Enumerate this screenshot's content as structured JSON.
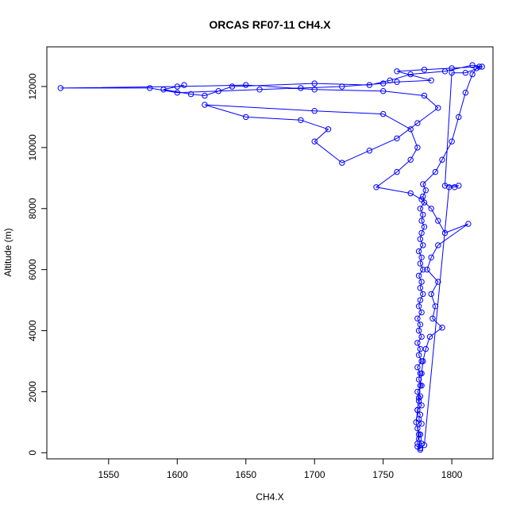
{
  "chart_data": {
    "type": "scatter",
    "title": "ORCAS RF07-11 CH4.X",
    "xlabel": "CH4.X",
    "ylabel": "Altitude (m)",
    "xlim": [
      1505,
      1830
    ],
    "ylim": [
      -200,
      13300
    ],
    "xticks": [
      1550,
      1600,
      1650,
      1700,
      1750,
      1800
    ],
    "yticks": [
      0,
      2000,
      4000,
      6000,
      8000,
      10000,
      12000
    ],
    "series_color": "#0000ff",
    "series": [
      {
        "points": [
          [
            1777,
            100
          ],
          [
            1775,
            200
          ],
          [
            1778,
            300
          ],
          [
            1776,
            450
          ],
          [
            1777,
            600
          ],
          [
            1775,
            800
          ],
          [
            1778,
            950
          ],
          [
            1776,
            1100
          ],
          [
            1777,
            1250
          ],
          [
            1775,
            1400
          ],
          [
            1778,
            1550
          ],
          [
            1776,
            1700
          ],
          [
            1777,
            1850
          ],
          [
            1775,
            2000
          ],
          [
            1778,
            2200
          ],
          [
            1776,
            2400
          ],
          [
            1777,
            2600
          ],
          [
            1775,
            2800
          ],
          [
            1778,
            3000
          ],
          [
            1776,
            3200
          ],
          [
            1777,
            3400
          ],
          [
            1775,
            3600
          ],
          [
            1778,
            3800
          ],
          [
            1776,
            4000
          ],
          [
            1777,
            4200
          ],
          [
            1775,
            4400
          ],
          [
            1778,
            4600
          ],
          [
            1776,
            4800
          ],
          [
            1777,
            5000
          ],
          [
            1779,
            5200
          ],
          [
            1777,
            5400
          ],
          [
            1778,
            5600
          ],
          [
            1776,
            5800
          ],
          [
            1779,
            6000
          ],
          [
            1777,
            6200
          ],
          [
            1778,
            6400
          ],
          [
            1776,
            6600
          ],
          [
            1779,
            6800
          ],
          [
            1777,
            7000
          ],
          [
            1778,
            7200
          ],
          [
            1780,
            7400
          ],
          [
            1778,
            7600
          ],
          [
            1779,
            7800
          ],
          [
            1777,
            8000
          ],
          [
            1780,
            8200
          ],
          [
            1779,
            8400
          ],
          [
            1781,
            8600
          ],
          [
            1779,
            8800
          ],
          [
            1788,
            9200
          ],
          [
            1793,
            9600
          ],
          [
            1800,
            10200
          ],
          [
            1805,
            11000
          ],
          [
            1810,
            11800
          ],
          [
            1815,
            12400
          ],
          [
            1818,
            12600
          ],
          [
            1820,
            12650
          ],
          [
            1800,
            12600
          ],
          [
            1780,
            12550
          ],
          [
            1760,
            12500
          ],
          [
            1785,
            12200
          ],
          [
            1760,
            12150
          ],
          [
            1750,
            12100
          ],
          [
            1720,
            12000
          ],
          [
            1690,
            11950
          ],
          [
            1660,
            11900
          ],
          [
            1630,
            11850
          ],
          [
            1600,
            11800
          ],
          [
            1580,
            11950
          ],
          [
            1515,
            11950
          ],
          [
            1600,
            12000
          ],
          [
            1650,
            12050
          ],
          [
            1700,
            11900
          ],
          [
            1750,
            11850
          ],
          [
            1780,
            11700
          ],
          [
            1790,
            11300
          ],
          [
            1775,
            10800
          ],
          [
            1760,
            10300
          ],
          [
            1740,
            9900
          ],
          [
            1720,
            9500
          ],
          [
            1700,
            10200
          ],
          [
            1710,
            10600
          ],
          [
            1690,
            10900
          ],
          [
            1650,
            11000
          ],
          [
            1620,
            11400
          ],
          [
            1700,
            11200
          ],
          [
            1750,
            11100
          ],
          [
            1770,
            10600
          ],
          [
            1775,
            10000
          ],
          [
            1770,
            9600
          ],
          [
            1760,
            9200
          ],
          [
            1745,
            8700
          ],
          [
            1770,
            8500
          ],
          [
            1778,
            8300
          ],
          [
            1785,
            8000
          ],
          [
            1790,
            7600
          ],
          [
            1795,
            7200
          ],
          [
            1812,
            7500
          ],
          [
            1790,
            6800
          ],
          [
            1785,
            6400
          ],
          [
            1782,
            6000
          ],
          [
            1790,
            5600
          ],
          [
            1785,
            5200
          ],
          [
            1788,
            4800
          ],
          [
            1786,
            4400
          ],
          [
            1793,
            4100
          ],
          [
            1784,
            3800
          ],
          [
            1781,
            3400
          ],
          [
            1779,
            3000
          ],
          [
            1778,
            2600
          ],
          [
            1777,
            2200
          ],
          [
            1776,
            1800
          ],
          [
            1775,
            1400
          ],
          [
            1774,
            1000
          ],
          [
            1776,
            600
          ],
          [
            1775,
            300
          ],
          [
            1777,
            150
          ],
          [
            1780,
            250
          ],
          [
            1798,
            8700
          ],
          [
            1802,
            8700
          ],
          [
            1805,
            8750
          ],
          [
            1795,
            8750
          ],
          [
            1800,
            12450
          ],
          [
            1810,
            12450
          ],
          [
            1822,
            12650
          ],
          [
            1815,
            12700
          ],
          [
            1795,
            12500
          ],
          [
            1770,
            12400
          ],
          [
            1755,
            12200
          ],
          [
            1740,
            12050
          ],
          [
            1700,
            12100
          ],
          [
            1640,
            12000
          ],
          [
            1620,
            11700
          ],
          [
            1610,
            11750
          ],
          [
            1590,
            11900
          ],
          [
            1605,
            12050
          ]
        ]
      }
    ]
  }
}
